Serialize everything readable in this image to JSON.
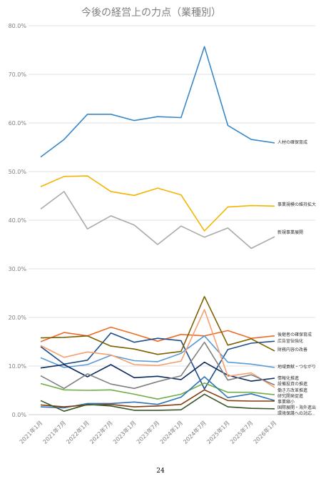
{
  "page_number": "24",
  "chart_data": {
    "type": "line",
    "title": "今後の経営上の力点（業種別）",
    "xlabel": "",
    "ylabel": "",
    "ylim": [
      0,
      80
    ],
    "yticks": [
      "0.0%",
      "10.0%",
      "20.0%",
      "30.0%",
      "40.0%",
      "50.0%",
      "60.0%",
      "70.0%",
      "80.0%"
    ],
    "grid": true,
    "categories": [
      "2021年1月",
      "2021年7月",
      "2022年1月",
      "2022年7月",
      "2023年1月",
      "2023年7月",
      "2024年1月",
      "2024年7月",
      "2025年1月",
      "2025年7月",
      "2026年1月"
    ],
    "series": [
      {
        "name": "人材の確保育成",
        "color": "#3a87c8",
        "values": [
          53.0,
          56.6,
          61.8,
          61.8,
          60.5,
          61.3,
          61.1,
          75.7,
          59.5,
          56.6,
          55.9
        ]
      },
      {
        "name": "事業規模の維持拡大",
        "color": "#f5b400",
        "values": [
          46.9,
          49.0,
          49.1,
          45.9,
          45.1,
          46.6,
          45.2,
          37.8,
          42.7,
          43.0,
          42.9
        ]
      },
      {
        "name": "新規事業展開",
        "color": "#aaaaaa",
        "values": [
          42.3,
          45.9,
          38.2,
          40.9,
          39.0,
          35.0,
          38.8,
          36.5,
          38.4,
          34.2,
          36.6
        ]
      },
      {
        "name": "後継者の確保育成",
        "color": "#ed6c2a",
        "values": [
          15.0,
          16.9,
          16.2,
          18.0,
          16.6,
          15.1,
          16.5,
          16.2,
          17.3,
          15.7,
          16.2
        ]
      },
      {
        "name": "広告宣伝強化",
        "color": "#1f4e8c",
        "values": [
          14.0,
          10.4,
          11.2,
          16.8,
          14.9,
          15.7,
          15.2,
          5.3,
          13.4,
          14.7,
          15.1
        ]
      },
      {
        "name": "財務内容の改善",
        "color": "#7d6000",
        "values": [
          15.8,
          15.9,
          16.2,
          14.1,
          13.5,
          12.4,
          13.0,
          24.3,
          14.3,
          15.6,
          13.1
        ]
      },
      {
        "name": "地域貢献・つながり",
        "color": "#5b9bd5",
        "values": [
          11.7,
          9.7,
          10.3,
          12.2,
          11.1,
          10.9,
          12.6,
          16.2,
          10.8,
          10.4,
          9.7
        ]
      },
      {
        "name": "情報化推進",
        "color": "#0a2a5e",
        "values": [
          9.6,
          10.3,
          7.8,
          10.3,
          7.6,
          7.9,
          7.2,
          10.8,
          8.1,
          6.9,
          7.5
        ]
      },
      {
        "name": "設備投資の推進",
        "color": "#f5a070",
        "values": [
          14.2,
          11.8,
          12.9,
          12.3,
          10.3,
          10.1,
          11.0,
          21.6,
          7.9,
          8.6,
          5.6
        ]
      },
      {
        "name": "働き方改革推進",
        "color": "#808080",
        "values": [
          8.0,
          5.4,
          8.4,
          6.3,
          5.4,
          6.8,
          8.0,
          14.9,
          7.1,
          8.2,
          6.1
        ]
      },
      {
        "name": "研究開発促進",
        "color": "#70ad47",
        "values": [
          6.4,
          5.1,
          5.0,
          5.1,
          4.2,
          3.2,
          4.2,
          6.5,
          4.6,
          4.6,
          4.1
        ]
      },
      {
        "name": "事業縮小",
        "color": "#2e75b6",
        "values": [
          1.6,
          1.4,
          2.3,
          2.3,
          2.6,
          2.1,
          3.6,
          7.8,
          3.5,
          4.3,
          2.9
        ]
      },
      {
        "name": "国際展開・海外進出",
        "color": "#843c0c",
        "values": [
          2.0,
          1.6,
          2.0,
          2.1,
          1.6,
          1.8,
          2.1,
          5.1,
          2.9,
          2.8,
          2.8
        ]
      },
      {
        "name": "環境保護への対応",
        "color": "#375623",
        "values": [
          2.9,
          0.7,
          2.1,
          1.8,
          0.9,
          0.9,
          1.0,
          4.2,
          1.6,
          1.3,
          1.2
        ]
      }
    ]
  }
}
